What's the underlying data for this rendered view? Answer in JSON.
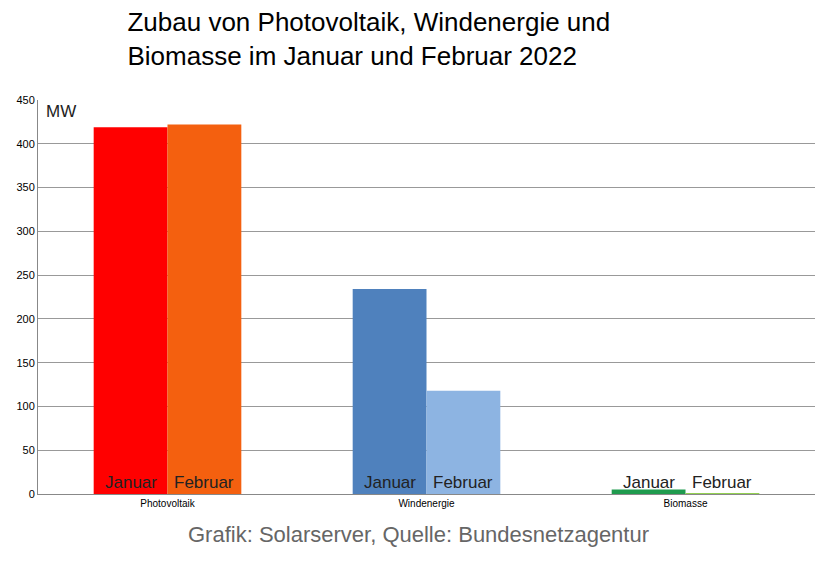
{
  "chart_data": {
    "type": "bar",
    "title": "Zubau von Photovoltaik, Windenergie und\nBiomasse im Januar und Februar 2022",
    "y_label": "MW",
    "source": "Grafik: Solarserver, Quelle: Bundesnetzagentur",
    "categories": [
      "Photovoltaik",
      "Windenergie",
      "Biomasse"
    ],
    "series": [
      {
        "name": "Januar",
        "colors": [
          "#ff0000",
          "#4f81bd",
          "#1f9b4e"
        ],
        "values": [
          419,
          234,
          5
        ]
      },
      {
        "name": "Februar",
        "colors": [
          "#f4600f",
          "#8db4e2",
          "#92d050"
        ],
        "values": [
          422,
          118,
          1
        ]
      }
    ],
    "ylim": [
      0,
      450
    ],
    "yticks": [
      0,
      50,
      100,
      150,
      200,
      250,
      300,
      350,
      400,
      450
    ],
    "grid": true,
    "data_labels": false
  }
}
